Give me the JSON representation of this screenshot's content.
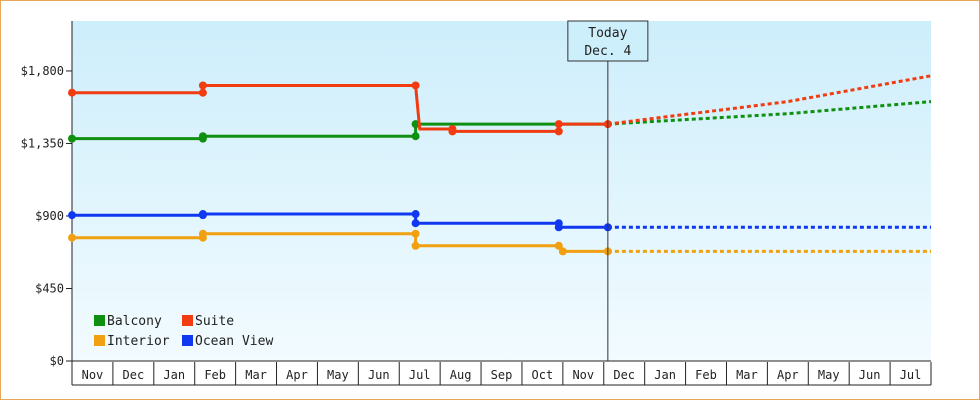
{
  "chart_data": {
    "type": "line",
    "x_categories": [
      "Nov",
      "Dec",
      "Jan",
      "Feb",
      "Mar",
      "Apr",
      "May",
      "Jun",
      "Jul",
      "Aug",
      "Sep",
      "Oct",
      "Nov",
      "Dec",
      "Jan",
      "Feb",
      "Mar",
      "Apr",
      "May",
      "Jun",
      "Jul"
    ],
    "y_ticks": [
      {
        "value": 0,
        "label": "$0"
      },
      {
        "value": 450,
        "label": "$450"
      },
      {
        "value": 900,
        "label": "$900"
      },
      {
        "value": 1350,
        "label": "$1,350"
      },
      {
        "value": 1800,
        "label": "$1,800"
      }
    ],
    "ylim": [
      0,
      2110
    ],
    "xlim": [
      0,
      21
    ],
    "today": {
      "line1": "Today",
      "line2": "Dec. 4",
      "x": 13.1
    },
    "legend": {
      "placement": "bottom-left"
    },
    "series": [
      {
        "name": "Balcony",
        "color": "#109010",
        "points": [
          [
            0,
            1380
          ],
          [
            3.2,
            1380
          ],
          [
            3.2,
            1395
          ],
          [
            8.4,
            1395
          ],
          [
            8.4,
            1470
          ],
          [
            11.9,
            1470
          ],
          [
            13.1,
            1470
          ]
        ],
        "markers": [
          0,
          1,
          2,
          3,
          4
        ],
        "forecast": [
          [
            13.1,
            1470
          ],
          [
            17.5,
            1535
          ],
          [
            21,
            1610
          ]
        ]
      },
      {
        "name": "Suite",
        "color": "#f03c10",
        "points": [
          [
            0,
            1665
          ],
          [
            3.2,
            1665
          ],
          [
            3.2,
            1710
          ],
          [
            8.4,
            1710
          ],
          [
            8.5,
            1440
          ],
          [
            9.3,
            1440
          ],
          [
            9.3,
            1425
          ],
          [
            11.9,
            1425
          ],
          [
            11.9,
            1470
          ],
          [
            13.1,
            1470
          ]
        ],
        "markers": [
          0,
          1,
          2,
          3,
          5,
          6,
          7,
          8,
          9
        ],
        "forecast": [
          [
            13.1,
            1470
          ],
          [
            17.5,
            1610
          ],
          [
            21,
            1770
          ]
        ]
      },
      {
        "name": "Interior",
        "color": "#f0a010",
        "points": [
          [
            0,
            765
          ],
          [
            3.2,
            765
          ],
          [
            3.2,
            790
          ],
          [
            8.4,
            790
          ],
          [
            8.4,
            715
          ],
          [
            11.9,
            715
          ],
          [
            12.0,
            680
          ],
          [
            13.1,
            680
          ]
        ],
        "markers": [
          0,
          1,
          2,
          3,
          4,
          5,
          6,
          7
        ],
        "forecast": [
          [
            13.1,
            680
          ],
          [
            21,
            680
          ]
        ]
      },
      {
        "name": "Ocean View",
        "color": "#1038f0",
        "points": [
          [
            0,
            905
          ],
          [
            3.2,
            905
          ],
          [
            3.2,
            912
          ],
          [
            8.4,
            912
          ],
          [
            8.4,
            855
          ],
          [
            11.9,
            855
          ],
          [
            11.9,
            830
          ],
          [
            13.1,
            830
          ]
        ],
        "markers": [
          0,
          1,
          2,
          3,
          4,
          5,
          6,
          7
        ],
        "forecast": [
          [
            13.1,
            830
          ],
          [
            21,
            830
          ]
        ]
      }
    ]
  }
}
